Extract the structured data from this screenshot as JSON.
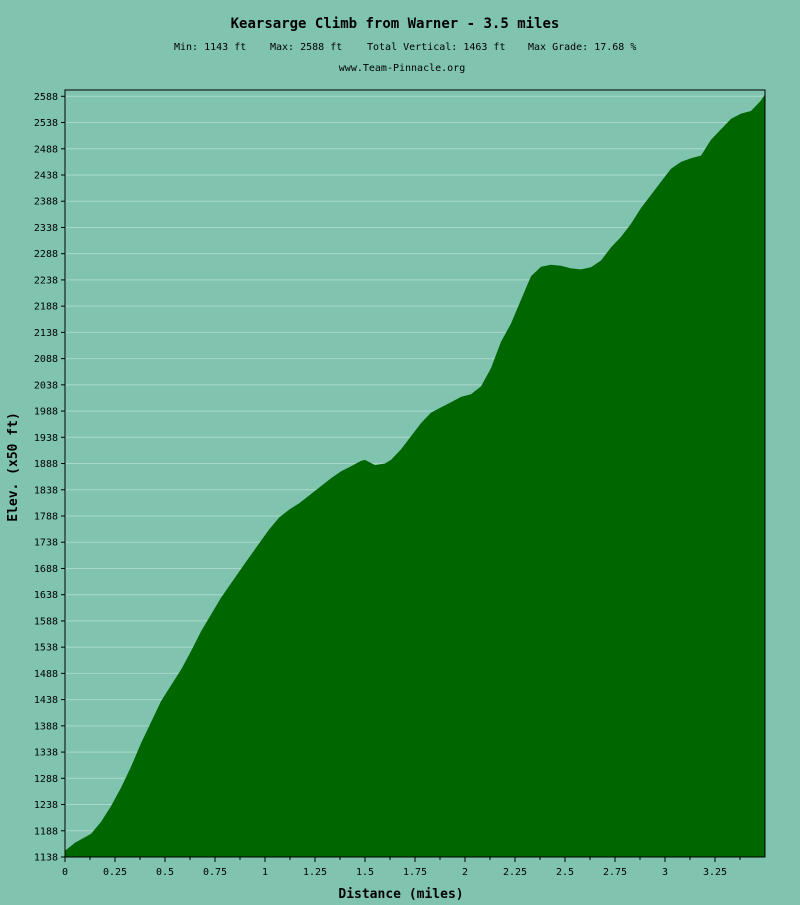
{
  "chart_data": {
    "type": "area",
    "title": "Kearsarge Climb from Warner - 3.5 miles",
    "stats": {
      "min": "Min: 1143 ft",
      "max": "Max: 2588 ft",
      "vertical": "Total Vertical: 1463 ft",
      "grade": "Max Grade: 17.68 %"
    },
    "source": "www.Team-Pinnacle.org",
    "xlabel": "Distance (miles)",
    "ylabel": "Elev. (x50 ft)",
    "xlim": [
      0,
      3.5
    ],
    "ylim": [
      1138,
      2600
    ],
    "grid": true,
    "fill_color": "#006600",
    "background_color": "#80c4b0",
    "x_ticks": [
      "0",
      "0.25",
      "0.5",
      "0.75",
      "1",
      "1.25",
      "1.5",
      "1.75",
      "2",
      "2.25",
      "2.5",
      "2.75",
      "3",
      "3.25"
    ],
    "y_ticks": [
      "1138",
      "1188",
      "1238",
      "1288",
      "1338",
      "1388",
      "1438",
      "1488",
      "1538",
      "1588",
      "1638",
      "1688",
      "1738",
      "1788",
      "1838",
      "1888",
      "1938",
      "1988",
      "2038",
      "2088",
      "2138",
      "2188",
      "2238",
      "2288",
      "2338",
      "2388",
      "2438",
      "2488",
      "2538",
      "2588"
    ],
    "series": [
      {
        "x": [
          0,
          0.05,
          0.13,
          0.18,
          0.23,
          0.28,
          0.33,
          0.38,
          0.43,
          0.48,
          0.53,
          0.58,
          0.63,
          0.68,
          0.73,
          0.78,
          0.84,
          0.9,
          0.96,
          1.02,
          1.07,
          1.12,
          1.17,
          1.23,
          1.28,
          1.33,
          1.38,
          1.43,
          1.48,
          1.5,
          1.55,
          1.6,
          1.63,
          1.68,
          1.73,
          1.78,
          1.83,
          1.88,
          1.93,
          1.98,
          2.03,
          2.08,
          2.13,
          2.18,
          2.23,
          2.28,
          2.33,
          2.38,
          2.43,
          2.48,
          2.53,
          2.58,
          2.63,
          2.68,
          2.73,
          2.78,
          2.83,
          2.88,
          2.93,
          2.98,
          3.03,
          3.08,
          3.13,
          3.18,
          3.23,
          3.28,
          3.33,
          3.38,
          3.43,
          3.48,
          3.5
        ],
        "y": [
          1150,
          1165,
          1182,
          1205,
          1235,
          1270,
          1310,
          1355,
          1395,
          1435,
          1465,
          1495,
          1530,
          1568,
          1600,
          1632,
          1665,
          1698,
          1730,
          1762,
          1785,
          1800,
          1812,
          1830,
          1845,
          1860,
          1873,
          1883,
          1893,
          1895,
          1885,
          1888,
          1895,
          1915,
          1940,
          1965,
          1985,
          1995,
          2005,
          2015,
          2020,
          2035,
          2070,
          2120,
          2155,
          2200,
          2245,
          2263,
          2267,
          2265,
          2260,
          2258,
          2262,
          2275,
          2300,
          2320,
          2345,
          2375,
          2400,
          2425,
          2450,
          2463,
          2470,
          2475,
          2505,
          2525,
          2545,
          2555,
          2560,
          2580,
          2592
        ]
      }
    ]
  }
}
